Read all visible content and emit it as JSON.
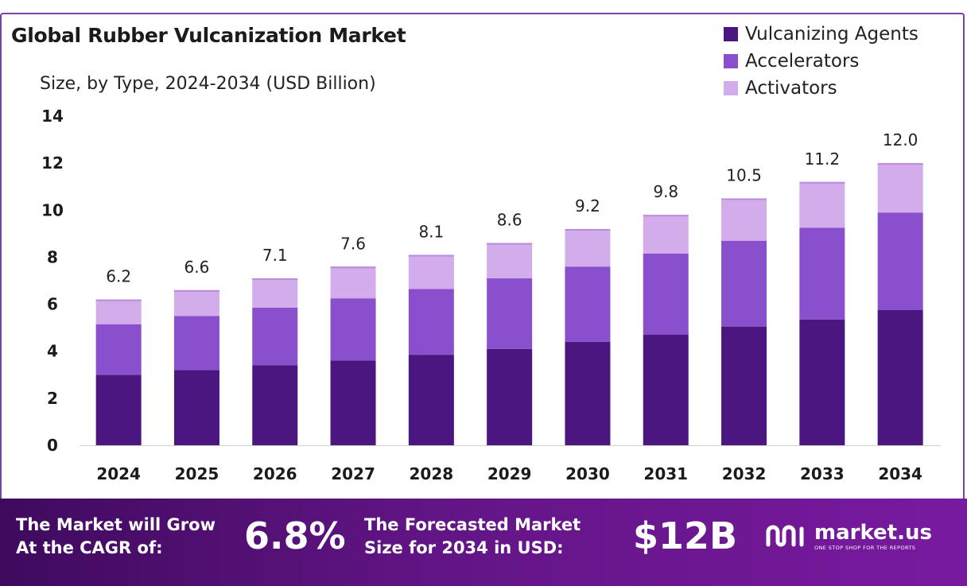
{
  "title": "Global Rubber Vulcanization Market",
  "subtitle": "Size, by Type, 2024-2034 (USD Billion)",
  "colors": {
    "vulcanizing_agents": "#4b1680",
    "accelerators": "#8a4fcc",
    "activators": "#d2aceb",
    "border": "#7b3fa6",
    "banner_start": "#3f0a5e",
    "banner_end": "#781aa0"
  },
  "chart_data": {
    "type": "bar",
    "stacked": true,
    "categories": [
      "2024",
      "2025",
      "2026",
      "2027",
      "2028",
      "2029",
      "2030",
      "2031",
      "2032",
      "2033",
      "2034"
    ],
    "series": [
      {
        "name": "Vulcanizing Agents",
        "values": [
          3.0,
          3.2,
          3.4,
          3.6,
          3.85,
          4.1,
          4.4,
          4.7,
          5.05,
          5.35,
          5.75
        ]
      },
      {
        "name": "Accelerators",
        "values": [
          2.15,
          2.3,
          2.45,
          2.65,
          2.8,
          3.0,
          3.2,
          3.45,
          3.65,
          3.9,
          4.15
        ]
      },
      {
        "name": "Activators",
        "values": [
          1.05,
          1.1,
          1.25,
          1.35,
          1.45,
          1.5,
          1.6,
          1.65,
          1.8,
          1.95,
          2.1
        ]
      }
    ],
    "totals": [
      "6.2",
      "6.6",
      "7.1",
      "7.6",
      "8.1",
      "8.6",
      "9.2",
      "9.8",
      "10.5",
      "11.2",
      "12.0"
    ],
    "ylim": [
      0,
      14
    ],
    "yticks": [
      "0",
      "2",
      "4",
      "6",
      "8",
      "10",
      "12",
      "14"
    ],
    "legend_position": "top-right",
    "grid": false
  },
  "banner": {
    "cagr_label_line1": "The Market will Grow",
    "cagr_label_line2": "At the CAGR of:",
    "cagr_value": "6.8%",
    "forecast_label_line1": "The Forecasted Market",
    "forecast_label_line2": "Size for 2034 in USD:",
    "forecast_value": "$12B",
    "brand_name": "market.us",
    "brand_tagline": "ONE STOP SHOP FOR THE REPORTS"
  }
}
